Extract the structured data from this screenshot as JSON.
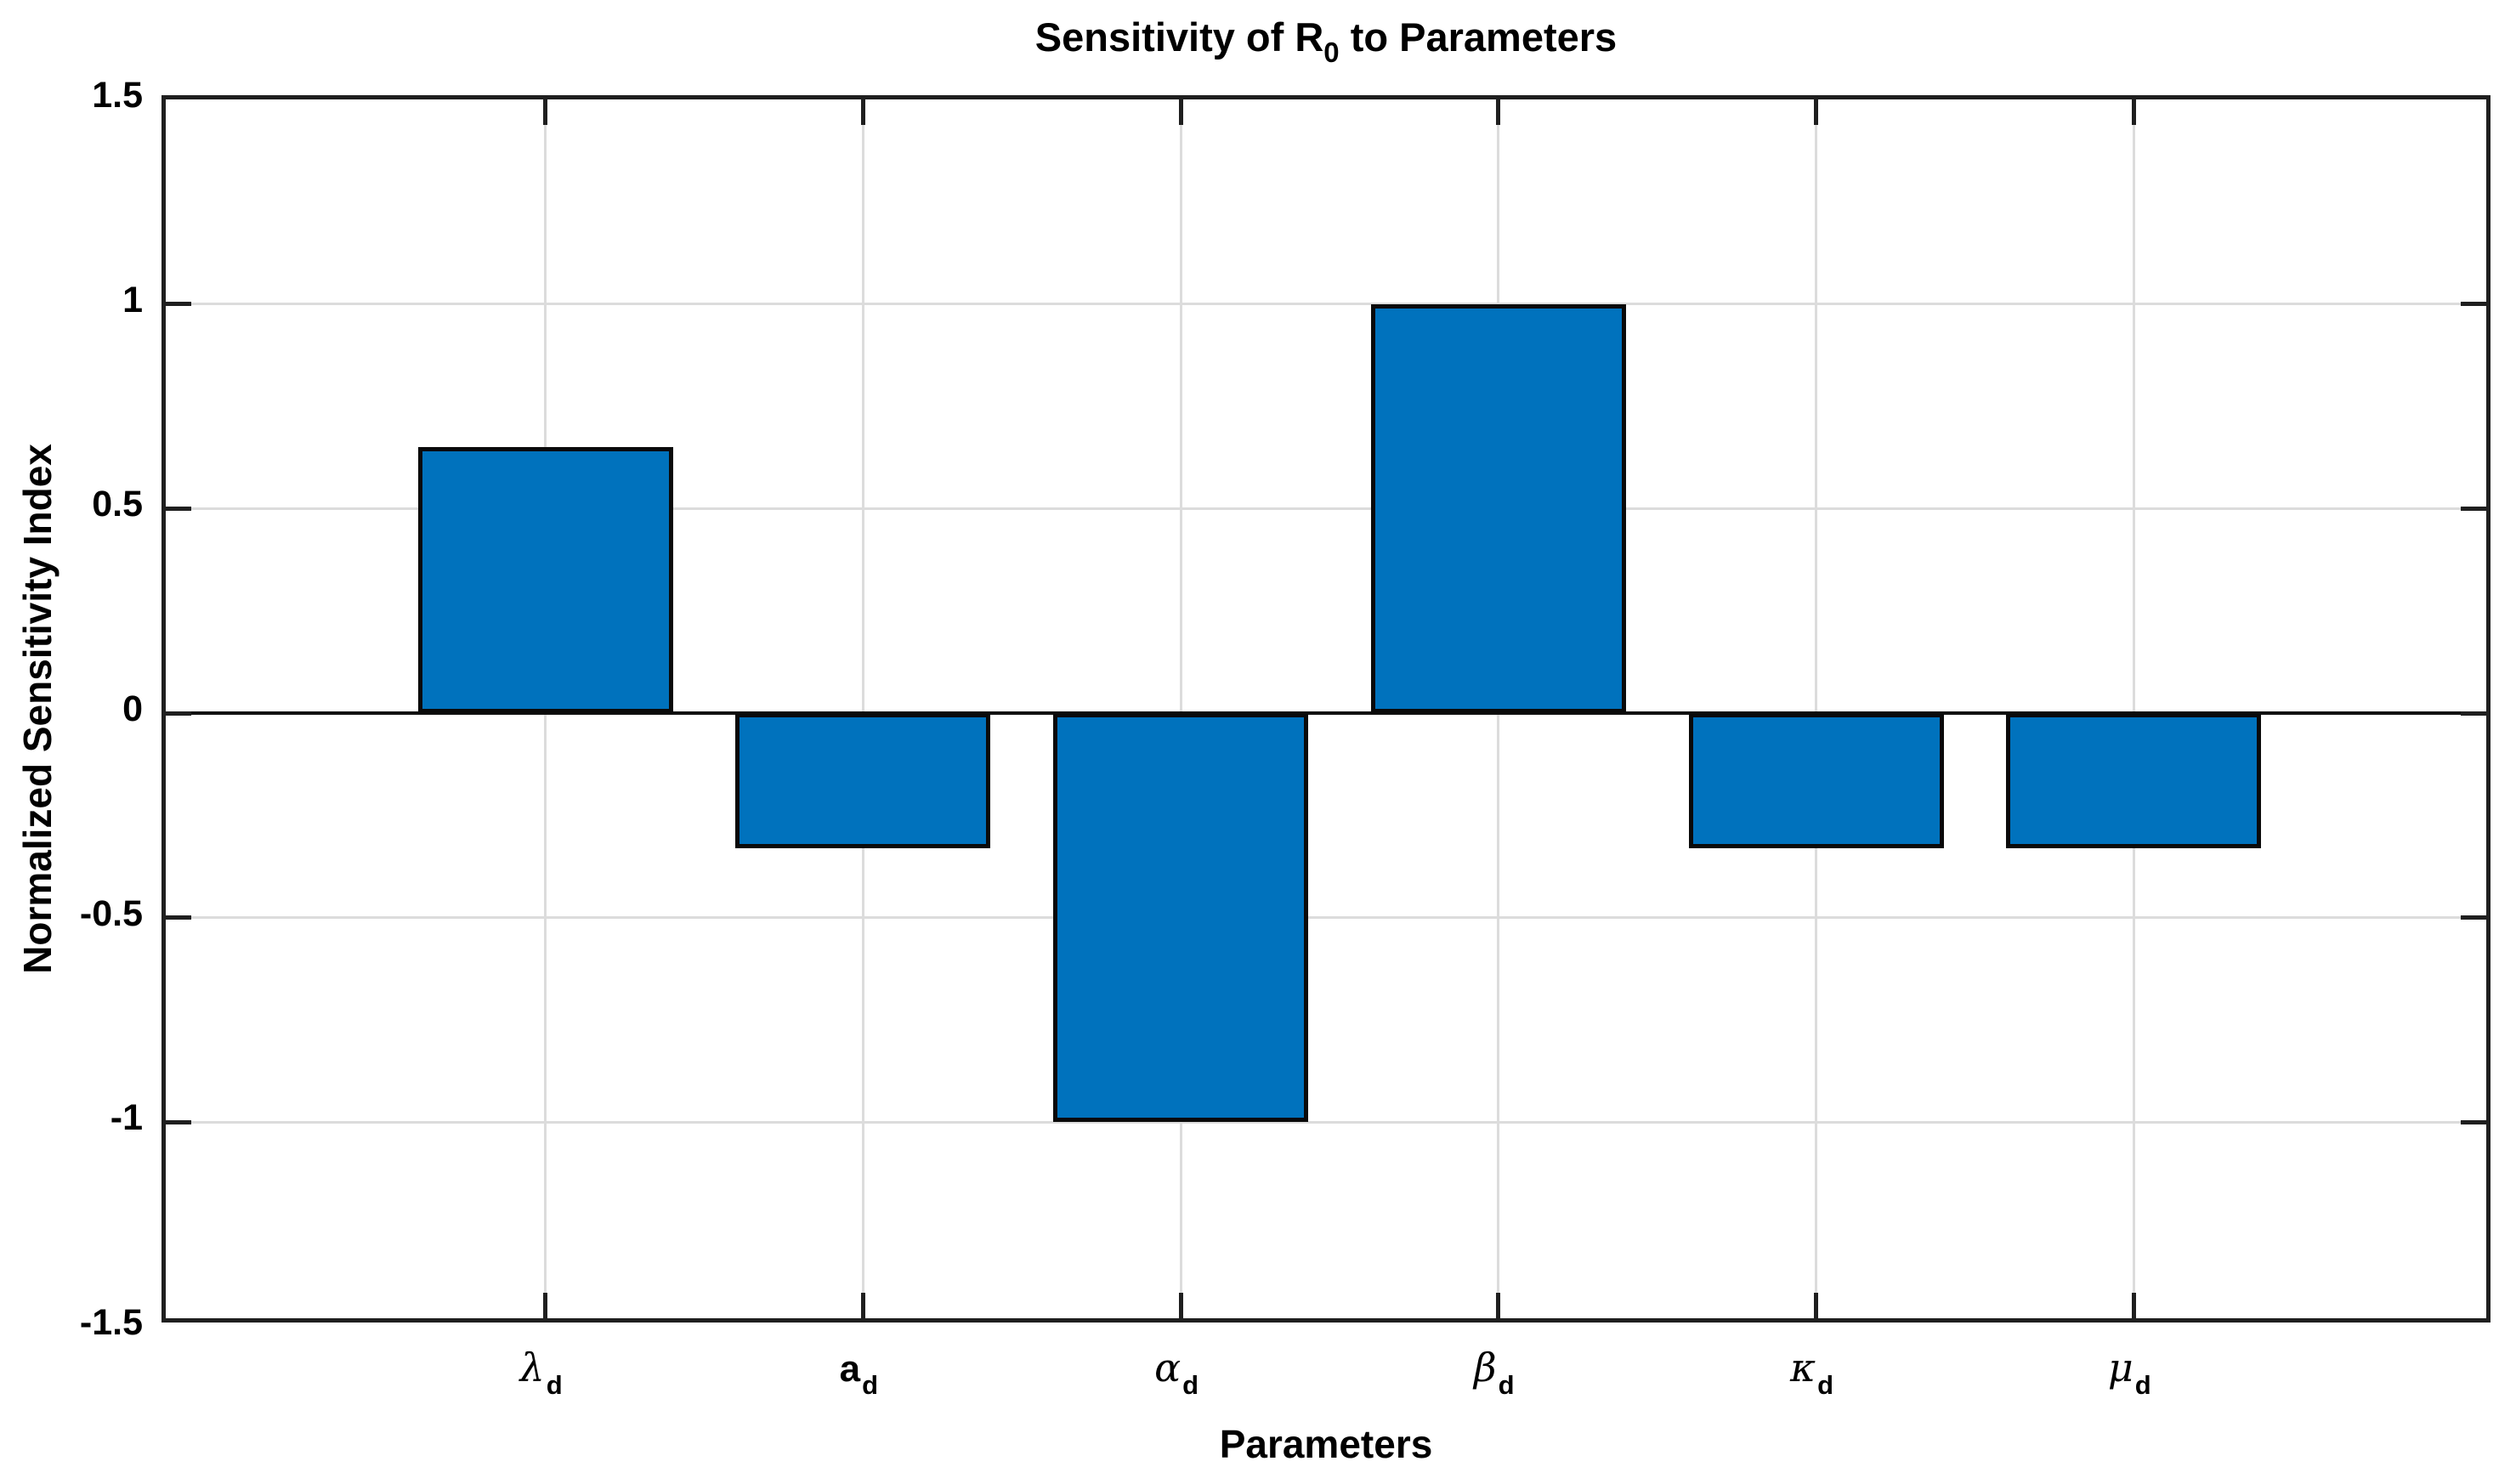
{
  "chart_data": {
    "type": "bar",
    "title": "Sensitivity of R_0 to Parameters",
    "title_parts": {
      "pre": "Sensitivity of R",
      "sub": "0",
      "post": " to Parameters"
    },
    "xlabel": "Parameters",
    "ylabel": "Normalized Sensitivity Index",
    "categories": [
      "λ_d",
      "a_d",
      "α_d",
      "β_d",
      "κ_d",
      "μ_d"
    ],
    "category_parts": [
      {
        "base": "λ",
        "sub": "d",
        "italic": true,
        "name": "lambda-d"
      },
      {
        "base": "a",
        "sub": "d",
        "italic": false,
        "name": "a-d"
      },
      {
        "base": "α",
        "sub": "d",
        "italic": true,
        "name": "alpha-d"
      },
      {
        "base": "β",
        "sub": "d",
        "italic": true,
        "name": "beta-d"
      },
      {
        "base": "κ",
        "sub": "d",
        "italic": true,
        "name": "kappa-d"
      },
      {
        "base": "μ",
        "sub": "d",
        "italic": true,
        "name": "mu-d"
      }
    ],
    "values": [
      0.65,
      -0.33,
      -1.0,
      1.0,
      -0.33,
      -0.33
    ],
    "ylim": [
      -1.5,
      1.5
    ],
    "yticks": [
      1.5,
      1,
      0.5,
      0,
      -0.5,
      -1,
      -1.5
    ],
    "ytick_labels": [
      "1.5",
      "1",
      "0.5",
      "0",
      "-0.5",
      "-1",
      "-1.5"
    ],
    "grid": true,
    "legend": "none",
    "colors": {
      "bar_fill": "#0072BD",
      "bar_edge": "#0a0a0a",
      "axis_box": "#1f1f1f",
      "grid": "#dcdcdc",
      "zero_line": "#111111",
      "background": "#ffffff",
      "text": "#000000"
    }
  }
}
